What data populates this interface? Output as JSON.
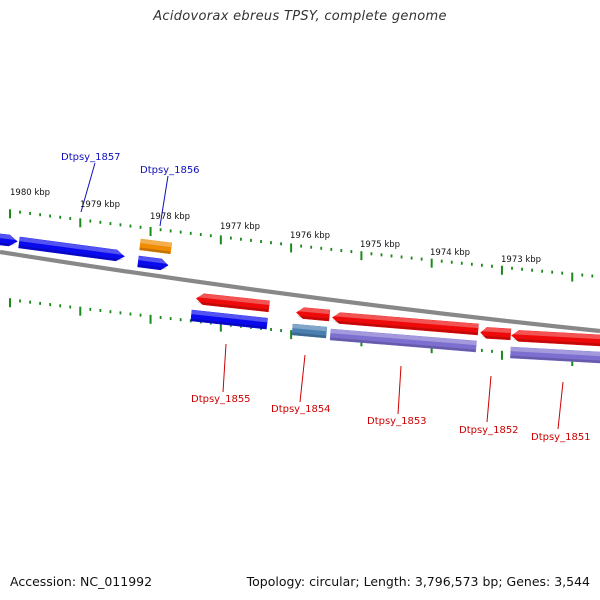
{
  "title": "Acidovorax ebreus TPSY, complete genome",
  "footer": {
    "accession": "Accession: NC_011992",
    "summary": "Topology: circular; Length: 3,796,573 bp; Genes: 3,544"
  },
  "colors": {
    "plus_strand": "#0a0aee",
    "minus_strand": "#ee0a0a",
    "orange_feature": "#f08c00",
    "lavender_feature": "#7c6fd0",
    "steel_feature": "#4a7fb0",
    "backbone": "#888888",
    "tick": "#1a8a1a",
    "plus_label": "#1010bb",
    "minus_label": "#cc0000"
  },
  "ticks": {
    "labels": [
      "1980 kbp",
      "1979 kbp",
      "1978 kbp",
      "1977 kbp",
      "1976 kbp",
      "1975 kbp",
      "1974 kbp",
      "1973 kbp"
    ]
  },
  "gene_labels": {
    "plus": [
      "Dtpsy_1857",
      "Dtpsy_1856"
    ],
    "minus": [
      "Dtpsy_1855",
      "Dtpsy_1854",
      "Dtpsy_1853",
      "Dtpsy_1852",
      "Dtpsy_1851"
    ]
  }
}
